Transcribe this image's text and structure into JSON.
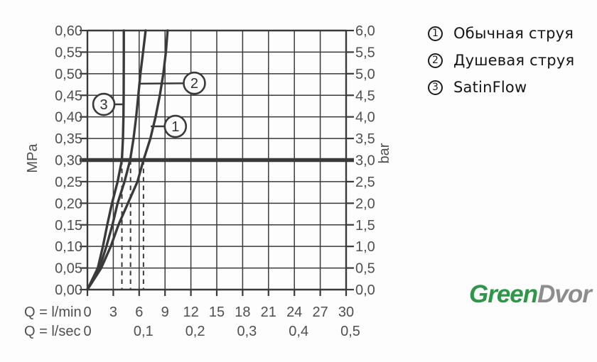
{
  "legend": {
    "items": [
      {
        "num": "1",
        "label": "Обычная струя"
      },
      {
        "num": "2",
        "label": "Душевая струя"
      },
      {
        "num": "3",
        "label": "SatinFlow"
      }
    ]
  },
  "logo": {
    "green": "Green",
    "gray": "Dvor",
    "green_color": "#2f9549",
    "gray_color": "#8d8d8d"
  },
  "chart_data": {
    "type": "line",
    "title": "",
    "line_color": "#3a3a3a",
    "label_color": "#4f4f4f",
    "grid": true,
    "x_axis": {
      "primary_label": "Q = l/min",
      "secondary_label": "Q = l/sec",
      "primary_ticks": [
        "0",
        "3",
        "6",
        "9",
        "12",
        "15",
        "18",
        "21",
        "24",
        "27",
        "30"
      ],
      "secondary_ticks": [
        {
          "value": "0",
          "at_lmin": 0
        },
        {
          "value": "0,1",
          "at_lmin": 6
        },
        {
          "value": "0,2",
          "at_lmin": 12
        },
        {
          "value": "0,3",
          "at_lmin": 18
        },
        {
          "value": "0,4",
          "at_lmin": 24
        },
        {
          "value": "0,5",
          "at_lmin": 30
        }
      ],
      "range_lmin": [
        0,
        30
      ]
    },
    "y_left": {
      "label": "MPa",
      "ticks": [
        "0,60",
        "0,55",
        "0,50",
        "0,45",
        "0,40",
        "0,35",
        "0,30",
        "0,25",
        "0,20",
        "0,15",
        "0,10",
        "0,05",
        "0,00"
      ],
      "range_mpa": [
        0,
        0.6
      ]
    },
    "y_right": {
      "label": "bar",
      "ticks": [
        "6,0",
        "5,5",
        "5,0",
        "4,5",
        "4,0",
        "3,5",
        "3,0",
        "2,5",
        "2,0",
        "1,5",
        "1,0",
        "0,5",
        "0,0"
      ]
    },
    "reference_line_mpa": 0.3,
    "dashed_drop_lines_lmin": [
      4.0,
      5.0,
      6.5
    ],
    "series": [
      {
        "id": "1",
        "name": "Обычная струя",
        "flow_at_3bar_lmin": 6.5,
        "points_lmin_mpa": [
          [
            0,
            0
          ],
          [
            1.6,
            0.05
          ],
          [
            2.7,
            0.1
          ],
          [
            3.6,
            0.15
          ],
          [
            4.7,
            0.2
          ],
          [
            5.8,
            0.25
          ],
          [
            6.5,
            0.3
          ],
          [
            7.3,
            0.35
          ],
          [
            7.9,
            0.4
          ],
          [
            8.4,
            0.45
          ],
          [
            8.8,
            0.5
          ],
          [
            9.1,
            0.55
          ],
          [
            9.3,
            0.6
          ]
        ],
        "callout": {
          "attach_lmin_mpa": [
            7.35,
            0.378
          ],
          "center_lmin_mpa": [
            10.2,
            0.378
          ]
        }
      },
      {
        "id": "2",
        "name": "Душевая струя",
        "flow_at_3bar_lmin": 5.0,
        "points_lmin_mpa": [
          [
            0,
            0
          ],
          [
            1.4,
            0.05
          ],
          [
            2.2,
            0.1
          ],
          [
            2.9,
            0.15
          ],
          [
            3.5,
            0.2
          ],
          [
            4.3,
            0.25
          ],
          [
            4.95,
            0.3
          ],
          [
            5.35,
            0.35
          ],
          [
            5.65,
            0.4
          ],
          [
            5.9,
            0.45
          ],
          [
            6.15,
            0.5
          ],
          [
            6.45,
            0.55
          ],
          [
            6.75,
            0.6
          ]
        ],
        "callout": {
          "attach_lmin_mpa": [
            6.0,
            0.477
          ],
          "center_lmin_mpa": [
            12.4,
            0.478
          ]
        }
      },
      {
        "id": "3",
        "name": "SatinFlow",
        "flow_at_3bar_lmin": 4.0,
        "points_lmin_mpa": [
          [
            0,
            0
          ],
          [
            1.2,
            0.05
          ],
          [
            1.8,
            0.1
          ],
          [
            2.3,
            0.15
          ],
          [
            2.85,
            0.2
          ],
          [
            3.5,
            0.25
          ],
          [
            4.0,
            0.3
          ],
          [
            4.12,
            0.35
          ],
          [
            4.18,
            0.4
          ],
          [
            4.2,
            0.45
          ],
          [
            4.21,
            0.5
          ],
          [
            4.22,
            0.55
          ],
          [
            4.22,
            0.6
          ]
        ],
        "callout": {
          "attach_lmin_mpa": [
            4.18,
            0.429
          ],
          "center_lmin_mpa": [
            1.9,
            0.429
          ]
        }
      }
    ]
  }
}
